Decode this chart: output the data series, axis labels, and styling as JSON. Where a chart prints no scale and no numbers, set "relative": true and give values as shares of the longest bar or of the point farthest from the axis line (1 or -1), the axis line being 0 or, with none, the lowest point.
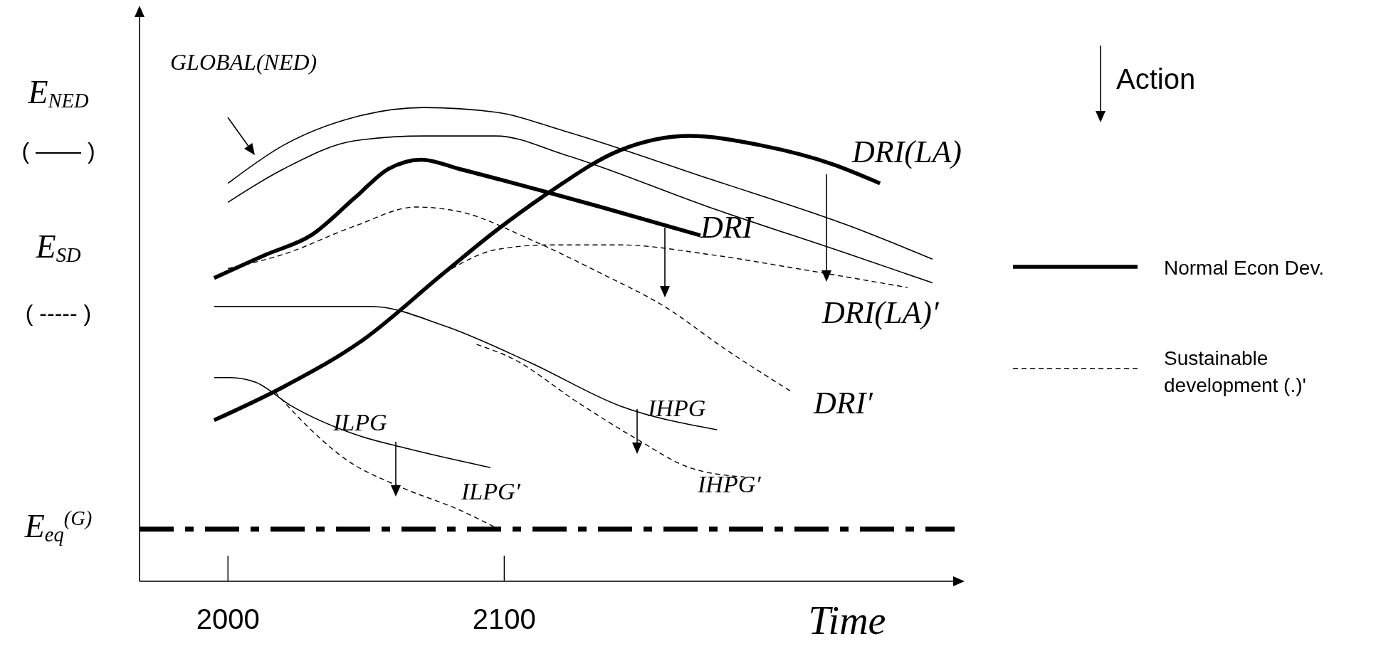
{
  "chart_data": {
    "type": "line",
    "relative": true,
    "xlabel": "Time",
    "xlim": [
      1968,
      2263
    ],
    "xticks": [
      2000,
      2100
    ],
    "tick_labels": "x",
    "legend": "right",
    "series": [
      {
        "name": "GLOBAL(NED)",
        "color": "#000000",
        "line_style": "solid",
        "x": [
          2000,
          2020,
          2046,
          2071,
          2097,
          2122,
          2174,
          2225,
          2255
        ],
        "values": [
          0.84,
          0.92,
          0.98,
          1.0,
          0.99,
          0.95,
          0.85,
          0.75,
          0.68
        ]
      },
      {
        "color": "#000000",
        "line_style": "solid",
        "x": [
          2000,
          2020,
          2046,
          2071,
          2097,
          2122,
          2174,
          2225,
          2255
        ],
        "values": [
          0.8,
          0.87,
          0.93,
          0.94,
          0.94,
          0.9,
          0.79,
          0.69,
          0.63
        ]
      },
      {
        "name": "DRI",
        "color": "#000000",
        "line_style": "solid",
        "x": [
          1995,
          2014,
          2030,
          2046,
          2058,
          2070,
          2084,
          2110,
          2135,
          2171
        ],
        "values": [
          0.64,
          0.69,
          0.73,
          0.81,
          0.87,
          0.89,
          0.87,
          0.83,
          0.79,
          0.73
        ]
      },
      {
        "name": "DRI(LA)",
        "color": "#000000",
        "line_style": "solid",
        "x": [
          1995,
          2020,
          2049,
          2078,
          2097,
          2116,
          2142,
          2167,
          2193,
          2219,
          2236
        ],
        "values": [
          0.34,
          0.41,
          0.51,
          0.65,
          0.74,
          0.82,
          0.91,
          0.94,
          0.92,
          0.88,
          0.84
        ]
      },
      {
        "name": "DRI′",
        "color": "#000000",
        "line_style": "dashed",
        "x": [
          2000,
          2020,
          2046,
          2068,
          2084,
          2110,
          2135,
          2158,
          2180,
          2204
        ],
        "values": [
          0.66,
          0.69,
          0.75,
          0.79,
          0.78,
          0.72,
          0.65,
          0.58,
          0.49,
          0.4
        ]
      },
      {
        "name": "DRI(LA)′",
        "color": "#000000",
        "line_style": "dashed",
        "x": [
          2081,
          2097,
          2116,
          2142,
          2174,
          2206,
          2246
        ],
        "values": [
          0.66,
          0.7,
          0.71,
          0.71,
          0.69,
          0.66,
          0.62
        ]
      },
      {
        "name": "IHPG",
        "color": "#000000",
        "line_style": "solid",
        "x": [
          1995,
          2030,
          2052,
          2078,
          2110,
          2142,
          2177
        ],
        "values": [
          0.58,
          0.58,
          0.58,
          0.54,
          0.46,
          0.37,
          0.32
        ]
      },
      {
        "name": "IHPG′",
        "color": "#000000",
        "line_style": "dashed",
        "x": [
          2090,
          2103,
          2126,
          2148,
          2167,
          2187
        ],
        "values": [
          0.5,
          0.47,
          0.38,
          0.3,
          0.24,
          0.22
        ]
      },
      {
        "name": "ILPG",
        "color": "#000000",
        "line_style": "solid",
        "x": [
          1995,
          2001,
          2010,
          2023,
          2046,
          2065,
          2095
        ],
        "values": [
          0.43,
          0.43,
          0.42,
          0.37,
          0.31,
          0.28,
          0.24
        ]
      },
      {
        "name": "ILPG′",
        "color": "#000000",
        "line_style": "dashed",
        "x": [
          2017,
          2030,
          2042,
          2062,
          2084,
          2098
        ],
        "values": [
          0.4,
          0.32,
          0.26,
          0.2,
          0.15,
          0.11
        ]
      }
    ],
    "ref_lines": [
      {
        "axis": "y",
        "value": 0.11,
        "label": "E$_{eq}$$^{(G)}$",
        "color": "#000000",
        "line_style": "dashed"
      }
    ],
    "annotations": [
      "E$_{NED}$",
      "( —— )",
      "E$_{SD}$",
      "( ----- )",
      "Action",
      "Normal Econ Dev.",
      "Sustainable development (.)'"
    ]
  }
}
